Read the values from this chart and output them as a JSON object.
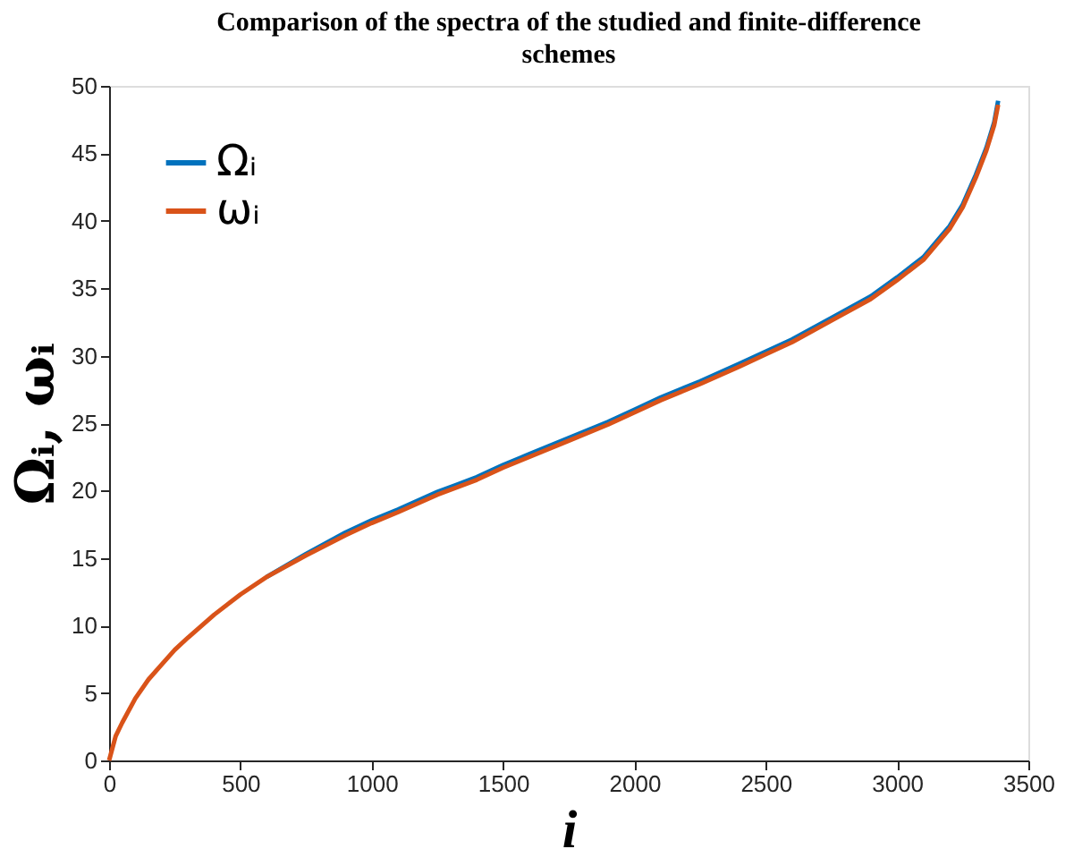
{
  "chart_data": {
    "type": "line",
    "title": "Comparison of the spectra of the studied and finite-difference schemes",
    "xlabel": "i",
    "ylabel": "Ωᵢ, ωᵢ",
    "x": [
      0,
      25,
      50,
      100,
      150,
      200,
      250,
      300,
      400,
      500,
      600,
      750,
      900,
      1000,
      1100,
      1250,
      1400,
      1500,
      1600,
      1750,
      1900,
      2000,
      2100,
      2250,
      2400,
      2500,
      2600,
      2750,
      2900,
      3000,
      3100,
      3200,
      3250,
      3300,
      3340,
      3370,
      3385
    ],
    "series": [
      {
        "name": "Ωᵢ",
        "color": "#0072bd",
        "values": [
          null,
          null,
          null,
          null,
          null,
          null,
          null,
          null,
          null,
          null,
          13.6,
          15.3,
          16.9,
          17.8,
          18.6,
          19.9,
          21.0,
          21.9,
          22.7,
          23.9,
          25.1,
          26.0,
          26.9,
          28.1,
          29.4,
          30.3,
          31.2,
          32.8,
          34.4,
          35.8,
          37.3,
          39.6,
          41.2,
          43.4,
          45.4,
          47.3,
          48.9
        ]
      },
      {
        "name": "ωᵢ",
        "color": "#d95319",
        "values": [
          0,
          1.8,
          2.8,
          4.6,
          6.0,
          7.1,
          8.2,
          9.1,
          10.8,
          12.3,
          13.6,
          15.2,
          16.7,
          17.6,
          18.4,
          19.7,
          20.8,
          21.7,
          22.5,
          23.7,
          24.9,
          25.8,
          26.7,
          27.9,
          29.2,
          30.1,
          31.0,
          32.6,
          34.2,
          35.6,
          37.1,
          39.4,
          41.0,
          43.2,
          45.2,
          47.1,
          48.6
        ]
      }
    ],
    "xlim": [
      0,
      3500
    ],
    "xticks": [
      0,
      500,
      1000,
      1500,
      2000,
      2500,
      3000,
      3500
    ],
    "ylim": [
      0,
      50
    ],
    "yticks": [
      0,
      5,
      10,
      15,
      20,
      25,
      30,
      35,
      40,
      45,
      50
    ],
    "grid": false,
    "legend": "top left",
    "marker": "none",
    "line_style": "solid"
  }
}
